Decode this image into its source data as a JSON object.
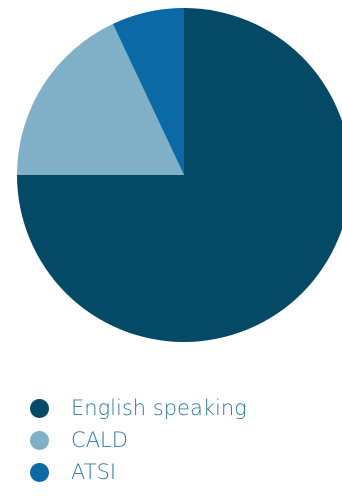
{
  "chart_data": {
    "type": "pie",
    "title": "",
    "slices": [
      {
        "label": "English speaking",
        "value": 75,
        "color": "#044a66"
      },
      {
        "label": "CALD",
        "value": 18,
        "color": "#7fb0c8"
      },
      {
        "label": "ATSI",
        "value": 7,
        "color": "#0b6aa6"
      }
    ],
    "legend_position": "bottom",
    "start_angle_deg": 0,
    "direction": "clockwise"
  },
  "legend": {
    "items": [
      {
        "label": "English speaking",
        "color": "#044a66"
      },
      {
        "label": "CALD",
        "color": "#7fb0c8"
      },
      {
        "label": "ATSI",
        "color": "#0b6aa6"
      }
    ]
  }
}
